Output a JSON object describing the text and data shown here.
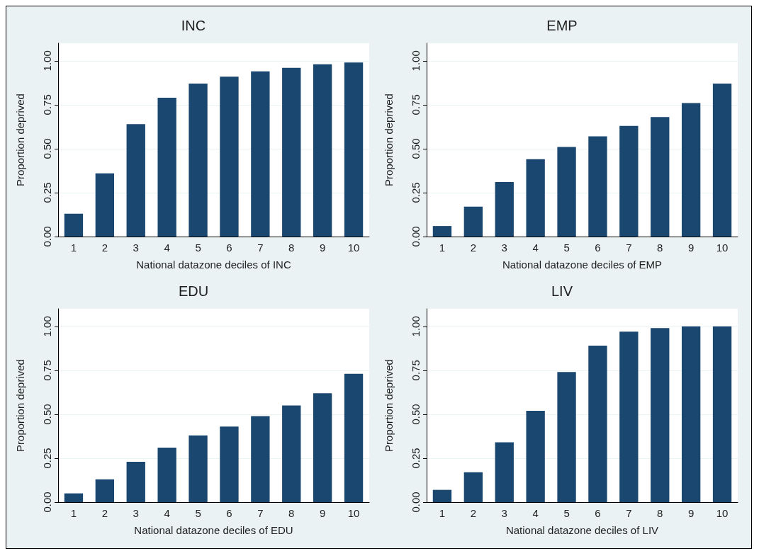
{
  "chart_data": [
    {
      "type": "bar",
      "title": "INC",
      "xlabel": "National datazone deciles of INC",
      "ylabel": "Proportion deprived",
      "categories": [
        "1",
        "2",
        "3",
        "4",
        "5",
        "6",
        "7",
        "8",
        "9",
        "10"
      ],
      "values": [
        0.13,
        0.36,
        0.64,
        0.79,
        0.87,
        0.91,
        0.94,
        0.96,
        0.98,
        0.99
      ],
      "color": "#1a476f",
      "ylim": [
        0,
        1.1
      ],
      "yticks": [
        {
          "value": 0,
          "label": "0.00"
        },
        {
          "value": 0.25,
          "label": "0.25"
        },
        {
          "value": 0.5,
          "label": "0.50"
        },
        {
          "value": 0.75,
          "label": "0.75"
        },
        {
          "value": 1,
          "label": "1.00"
        }
      ],
      "grid": "y"
    },
    {
      "type": "bar",
      "title": "EMP",
      "xlabel": "National datazone deciles of EMP",
      "ylabel": "Proportion deprived",
      "categories": [
        "1",
        "2",
        "3",
        "4",
        "5",
        "6",
        "7",
        "8",
        "9",
        "10"
      ],
      "values": [
        0.06,
        0.17,
        0.31,
        0.44,
        0.51,
        0.57,
        0.63,
        0.68,
        0.76,
        0.87
      ],
      "color": "#1a476f",
      "ylim": [
        0,
        1.1
      ],
      "yticks": [
        {
          "value": 0,
          "label": "0.00"
        },
        {
          "value": 0.25,
          "label": "0.25"
        },
        {
          "value": 0.5,
          "label": "0.50"
        },
        {
          "value": 0.75,
          "label": "0.75"
        },
        {
          "value": 1,
          "label": "1.00"
        }
      ],
      "grid": "y"
    },
    {
      "type": "bar",
      "title": "EDU",
      "xlabel": "National datazone deciles of EDU",
      "ylabel": "Proportion deprived",
      "categories": [
        "1",
        "2",
        "3",
        "4",
        "5",
        "6",
        "7",
        "8",
        "9",
        "10"
      ],
      "values": [
        0.05,
        0.13,
        0.23,
        0.31,
        0.38,
        0.43,
        0.49,
        0.55,
        0.62,
        0.73
      ],
      "color": "#1a476f",
      "ylim": [
        0,
        1.1
      ],
      "yticks": [
        {
          "value": 0,
          "label": "0.00"
        },
        {
          "value": 0.25,
          "label": "0.25"
        },
        {
          "value": 0.5,
          "label": "0.50"
        },
        {
          "value": 0.75,
          "label": "0.75"
        },
        {
          "value": 1,
          "label": "1.00"
        }
      ],
      "grid": "y"
    },
    {
      "type": "bar",
      "title": "LIV",
      "xlabel": "National datazone deciles of LIV",
      "ylabel": "Proportion deprived",
      "categories": [
        "1",
        "2",
        "3",
        "4",
        "5",
        "6",
        "7",
        "8",
        "9",
        "10"
      ],
      "values": [
        0.07,
        0.17,
        0.34,
        0.52,
        0.74,
        0.89,
        0.97,
        0.99,
        1.0,
        1.0
      ],
      "color": "#1a476f",
      "ylim": [
        0,
        1.1
      ],
      "yticks": [
        {
          "value": 0,
          "label": "0.00"
        },
        {
          "value": 0.25,
          "label": "0.25"
        },
        {
          "value": 0.5,
          "label": "0.50"
        },
        {
          "value": 0.75,
          "label": "0.75"
        },
        {
          "value": 1,
          "label": "1.00"
        }
      ],
      "grid": "y"
    }
  ]
}
